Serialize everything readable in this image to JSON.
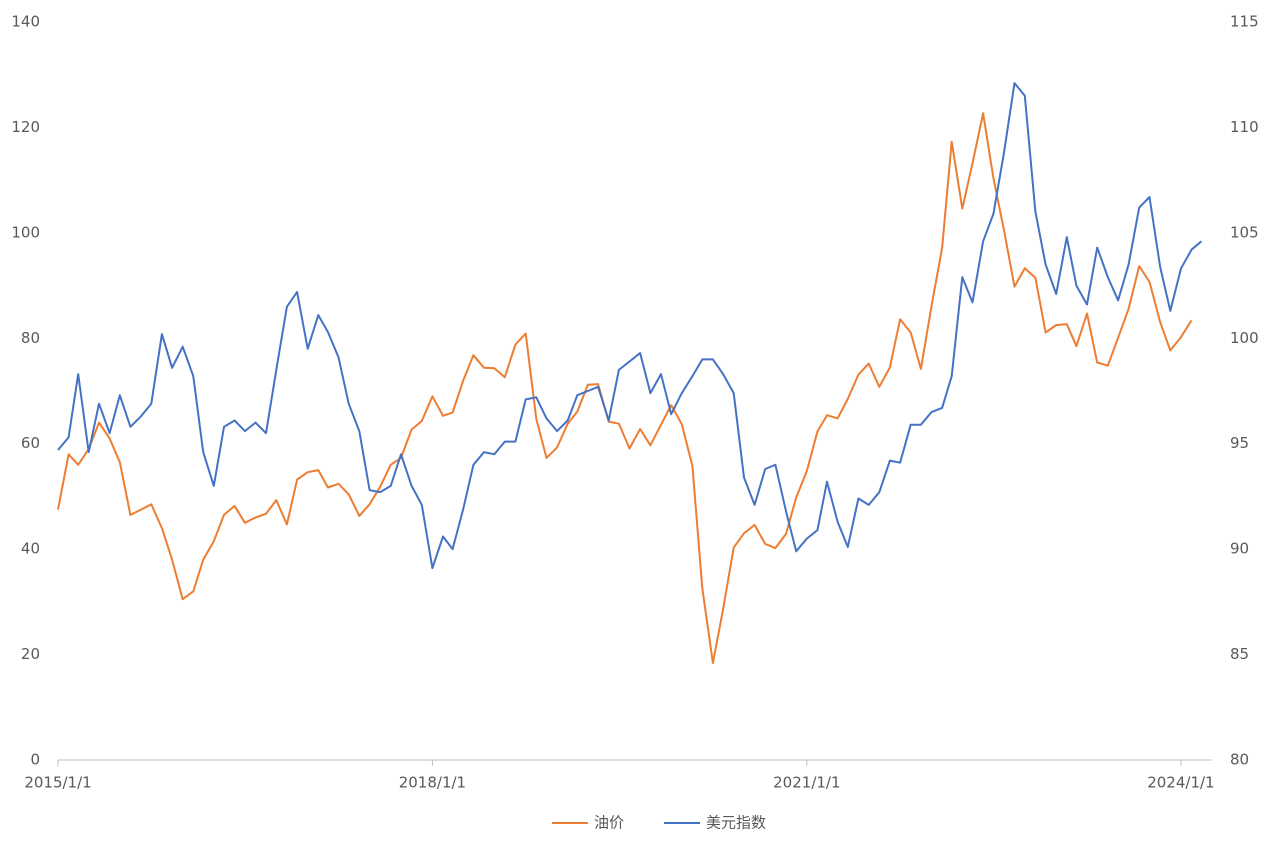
{
  "chart_data": {
    "type": "line",
    "x": [
      "2015/1/1",
      "2015/2/1",
      "2015/3/1",
      "2015/4/1",
      "2015/5/1",
      "2015/6/1",
      "2015/7/1",
      "2015/8/1",
      "2015/9/1",
      "2015/10/1",
      "2015/11/1",
      "2015/12/1",
      "2016/1/1",
      "2016/2/1",
      "2016/3/1",
      "2016/4/1",
      "2016/5/1",
      "2016/6/1",
      "2016/7/1",
      "2016/8/1",
      "2016/9/1",
      "2016/10/1",
      "2016/11/1",
      "2016/12/1",
      "2017/1/1",
      "2017/2/1",
      "2017/3/1",
      "2017/4/1",
      "2017/5/1",
      "2017/6/1",
      "2017/7/1",
      "2017/8/1",
      "2017/9/1",
      "2017/10/1",
      "2017/11/1",
      "2017/12/1",
      "2018/1/1",
      "2018/2/1",
      "2018/3/1",
      "2018/4/1",
      "2018/5/1",
      "2018/6/1",
      "2018/7/1",
      "2018/8/1",
      "2018/9/1",
      "2018/10/1",
      "2018/11/1",
      "2018/12/1",
      "2019/1/1",
      "2019/2/1",
      "2019/3/1",
      "2019/4/1",
      "2019/5/1",
      "2019/6/1",
      "2019/7/1",
      "2019/8/1",
      "2019/9/1",
      "2019/10/1",
      "2019/11/1",
      "2019/12/1",
      "2020/1/1",
      "2020/2/1",
      "2020/3/1",
      "2020/4/1",
      "2020/5/1",
      "2020/6/1",
      "2020/7/1",
      "2020/8/1",
      "2020/9/1",
      "2020/10/1",
      "2020/11/1",
      "2020/12/1",
      "2021/1/1",
      "2021/2/1",
      "2021/3/1",
      "2021/4/1",
      "2021/5/1",
      "2021/6/1",
      "2021/7/1",
      "2021/8/1",
      "2021/9/1",
      "2021/10/1",
      "2021/11/1",
      "2021/12/1",
      "2022/1/1",
      "2022/2/1",
      "2022/3/1",
      "2022/4/1",
      "2022/5/1",
      "2022/6/1",
      "2022/7/1",
      "2022/8/1",
      "2022/9/1",
      "2022/10/1",
      "2022/11/1",
      "2022/12/1",
      "2023/1/1",
      "2023/2/1",
      "2023/3/1",
      "2023/4/1",
      "2023/5/1",
      "2023/6/1",
      "2023/7/1",
      "2023/8/1",
      "2023/9/1",
      "2023/10/1",
      "2023/11/1",
      "2023/12/1",
      "2024/1/1",
      "2024/2/1",
      "2024/3/1"
    ],
    "xlim": [
      "2015/1/1",
      "2024/4/1"
    ],
    "xticks": [
      "2015/1/1",
      "2018/1/1",
      "2021/1/1",
      "2024/1/1"
    ],
    "ylim": [
      0,
      140
    ],
    "yticks": [
      0,
      20,
      40,
      60,
      80,
      100,
      120,
      140
    ],
    "y2lim": [
      80,
      115
    ],
    "y2ticks": [
      80,
      85,
      90,
      95,
      100,
      105,
      110,
      115
    ],
    "grid": false,
    "legend": "bottom",
    "series": [
      {
        "name": "油价",
        "color": "#ed7d31",
        "values": [
          47.5,
          58,
          56,
          59,
          64,
          61,
          56.5,
          46.5,
          47.5,
          48.5,
          44,
          38,
          30.5,
          32,
          38,
          41.5,
          46.5,
          48.2,
          45,
          46,
          46.7,
          49.3,
          44.7,
          53.2,
          54.6,
          55,
          51.7,
          52.4,
          50.4,
          46.3,
          48.5,
          51.8,
          56,
          57.3,
          62.7,
          64.3,
          69,
          65.3,
          65.9,
          72,
          76.8,
          74.4,
          74.3,
          72.6,
          78.8,
          80.9,
          64.7,
          57.3,
          59.3,
          63.8,
          66.1,
          71.2,
          71.3,
          64.2,
          63.8,
          59.1,
          62.8,
          59.7,
          63.6,
          67.3,
          63.7,
          55.8,
          32.6,
          18.4,
          28.6,
          40.3,
          43,
          44.6,
          41,
          40.2,
          42.9,
          49.8,
          54.8,
          62.3,
          65.4,
          64.8,
          68.5,
          73.1,
          75.2,
          70.8,
          74.5,
          83.6,
          81.1,
          74.2,
          86.1,
          97.1,
          117.3,
          104.6,
          113.2,
          122.7,
          110.4,
          100.5,
          89.8,
          93.3,
          91.5,
          81.1,
          82.5,
          82.7,
          78.5,
          84.7,
          75.4,
          74.8,
          80.1,
          85.6,
          93.7,
          90.7,
          83.1,
          77.7,
          80.2,
          83.4,
          null
        ]
      },
      {
        "name": "美元指数",
        "color": "#4472c4",
        "axis": "y2",
        "values": [
          94.7,
          95.3,
          98.3,
          94.6,
          96.9,
          95.5,
          97.3,
          95.8,
          96.3,
          96.9,
          100.2,
          98.6,
          99.6,
          98.2,
          94.6,
          93.0,
          95.8,
          96.1,
          95.6,
          96.0,
          95.5,
          98.5,
          101.5,
          102.2,
          99.5,
          101.1,
          100.3,
          99.1,
          96.9,
          95.6,
          92.8,
          92.7,
          93.0,
          94.5,
          93.0,
          92.1,
          89.1,
          90.6,
          90.0,
          91.9,
          94.0,
          94.6,
          94.5,
          95.1,
          95.1,
          97.1,
          97.2,
          96.2,
          95.6,
          96.1,
          97.3,
          97.5,
          97.7,
          96.1,
          98.5,
          98.9,
          99.3,
          97.4,
          98.3,
          96.4,
          97.4,
          98.2,
          99.0,
          99.0,
          98.3,
          97.4,
          93.4,
          92.1,
          93.8,
          94.0,
          91.8,
          89.9,
          90.5,
          90.9,
          93.2,
          91.3,
          90.1,
          92.4,
          92.1,
          92.7,
          94.2,
          94.1,
          95.9,
          95.9,
          96.5,
          96.7,
          98.2,
          102.9,
          101.7,
          104.6,
          105.9,
          108.8,
          112.1,
          111.5,
          106.0,
          103.5,
          102.1,
          104.8,
          102.5,
          101.6,
          104.3,
          102.9,
          101.8,
          103.5,
          106.2,
          106.7,
          103.4,
          101.3,
          103.3,
          104.2,
          104.6
        ]
      }
    ]
  }
}
